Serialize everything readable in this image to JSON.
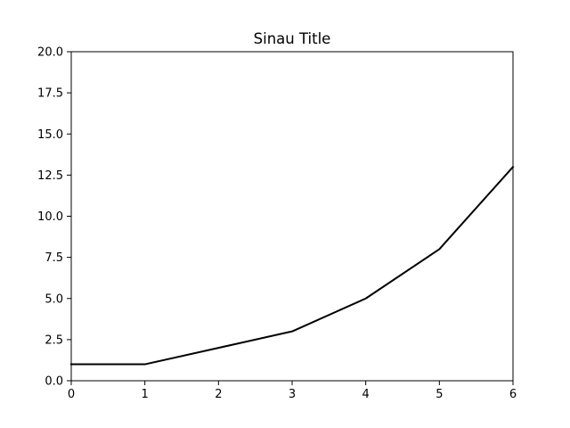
{
  "chart_data": {
    "type": "line",
    "title": "Sinau Title",
    "xlabel": "",
    "ylabel": "",
    "x": [
      0,
      1,
      2,
      3,
      4,
      5,
      6
    ],
    "series": [
      {
        "values": [
          1,
          1,
          2,
          3,
          5,
          8,
          13
        ],
        "color": "#000000"
      }
    ],
    "xlim": [
      0,
      6
    ],
    "ylim": [
      0,
      20
    ],
    "xticks": [
      0,
      1,
      2,
      3,
      4,
      5,
      6
    ],
    "xtick_labels": [
      "0",
      "1",
      "2",
      "3",
      "4",
      "5",
      "6"
    ],
    "yticks": [
      0,
      2.5,
      5,
      7.5,
      10,
      12.5,
      15,
      17.5,
      20
    ],
    "ytick_labels": [
      "0.0",
      "2.5",
      "5.0",
      "7.5",
      "10.0",
      "12.5",
      "15.0",
      "17.5",
      "20.0"
    ],
    "grid": false,
    "legend": false
  }
}
